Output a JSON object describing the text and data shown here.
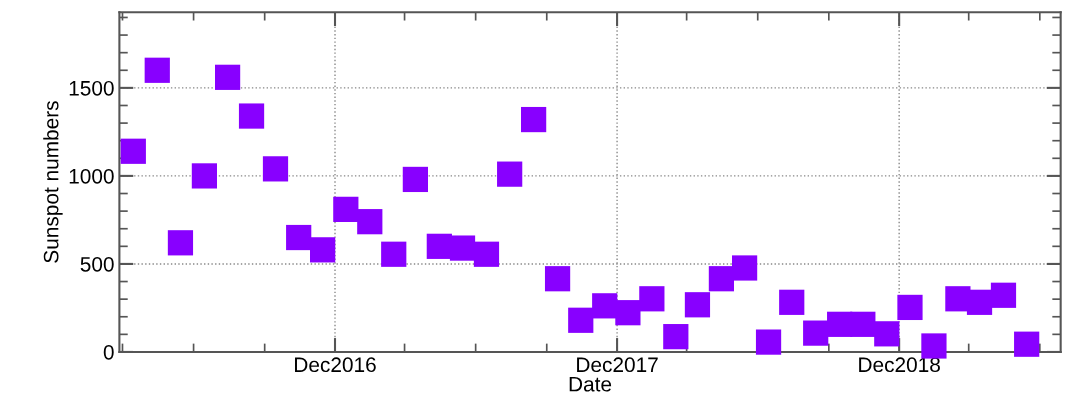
{
  "chart_data": {
    "type": "scatter",
    "xlabel": "Date",
    "ylabel": "Sunspot numbers",
    "marker": "square",
    "grid": true,
    "x": [
      "2016-03-15",
      "2016-04-15",
      "2016-05-15",
      "2016-06-15",
      "2016-07-15",
      "2016-08-15",
      "2016-09-15",
      "2016-10-15",
      "2016-11-15",
      "2016-12-15",
      "2017-01-15",
      "2017-02-15",
      "2017-03-15",
      "2017-04-15",
      "2017-05-15",
      "2017-06-15",
      "2017-07-15",
      "2017-08-15",
      "2017-09-15",
      "2017-10-15",
      "2017-11-15",
      "2017-12-15",
      "2018-01-15",
      "2018-02-15",
      "2018-03-15",
      "2018-04-15",
      "2018-05-15",
      "2018-06-15",
      "2018-07-15",
      "2018-08-15",
      "2018-09-15",
      "2018-10-15",
      "2018-11-15",
      "2018-12-15",
      "2019-01-15",
      "2019-02-15",
      "2019-03-15",
      "2019-04-15",
      "2019-05-15"
    ],
    "series": [
      {
        "color": "#8800ff",
        "values": [
          1140,
          1600,
          620,
          1000,
          1560,
          1340,
          1040,
          650,
          580,
          810,
          740,
          555,
          980,
          600,
          590,
          555,
          1010,
          1320,
          416,
          180,
          262,
          223,
          302,
          87,
          268,
          416,
          477,
          56,
          282,
          107,
          157,
          157,
          103,
          253,
          34,
          302,
          282,
          322,
          44
        ]
      }
    ],
    "xlim": [
      "2016-02-26",
      "2019-06-28"
    ],
    "xticks": [
      {
        "value": "2016-03-01",
        "label": null
      },
      {
        "value": "2016-06-01",
        "label": null
      },
      {
        "value": "2016-09-01",
        "label": null
      },
      {
        "value": "2016-12-01",
        "label": "Dec2016"
      },
      {
        "value": "2017-03-01",
        "label": null
      },
      {
        "value": "2017-06-01",
        "label": null
      },
      {
        "value": "2017-09-01",
        "label": null
      },
      {
        "value": "2017-12-01",
        "label": "Dec2017"
      },
      {
        "value": "2018-03-01",
        "label": null
      },
      {
        "value": "2018-06-01",
        "label": null
      },
      {
        "value": "2018-09-01",
        "label": null
      },
      {
        "value": "2018-12-01",
        "label": "Dec2018"
      },
      {
        "value": "2019-03-01",
        "label": null
      },
      {
        "value": "2019-06-01",
        "label": null
      }
    ],
    "ylim": [
      0,
      1930
    ],
    "yticks": [
      0,
      {
        "value": 100,
        "label": null
      },
      {
        "value": 200,
        "label": null
      },
      {
        "value": 300,
        "label": null
      },
      {
        "value": 400,
        "label": null
      },
      500,
      {
        "value": 600,
        "label": null
      },
      {
        "value": 700,
        "label": null
      },
      {
        "value": 800,
        "label": null
      },
      {
        "value": 900,
        "label": null
      },
      1000,
      {
        "value": 1100,
        "label": null
      },
      {
        "value": 1200,
        "label": null
      },
      {
        "value": 1300,
        "label": null
      },
      {
        "value": 1400,
        "label": null
      },
      1500,
      {
        "value": 1600,
        "label": null
      },
      {
        "value": 1700,
        "label": null
      },
      {
        "value": 1800,
        "label": null
      },
      {
        "value": 1900,
        "label": null
      }
    ]
  }
}
